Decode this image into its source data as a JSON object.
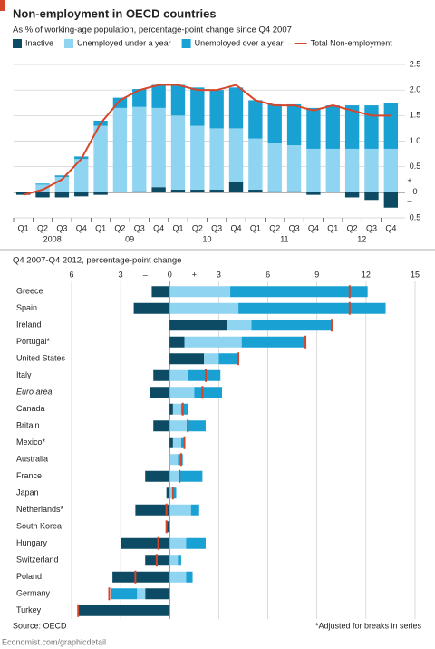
{
  "title": "Non-employment in OECD countries",
  "source": "Source: OECD",
  "note": "*Adjusted for breaks in series",
  "footer": "Economist.com/graphicdetail",
  "chart_data": [
    {
      "type": "stacked-bar-line",
      "subtitle": "As % of working-age population, percentage-point change since Q4 2007",
      "categories": [
        "Q1",
        "Q2",
        "Q3",
        "Q4",
        "Q1",
        "Q2",
        "Q3",
        "Q4",
        "Q1",
        "Q2",
        "Q3",
        "Q4",
        "Q1",
        "Q2",
        "Q3",
        "Q4",
        "Q1",
        "Q2",
        "Q3",
        "Q4"
      ],
      "years": [
        "2008",
        "09",
        "10",
        "11",
        "12"
      ],
      "series": [
        {
          "name": "Inactive",
          "color": "#0d4a63",
          "values": [
            -0.05,
            -0.1,
            -0.1,
            -0.08,
            -0.05,
            0.0,
            0.02,
            0.1,
            0.05,
            0.05,
            0.05,
            0.2,
            0.05,
            0.02,
            0.02,
            -0.05,
            0.0,
            -0.1,
            -0.15,
            -0.3
          ]
        },
        {
          "name": "Unemployed under a year",
          "color": "#8fd4f0",
          "values": [
            0.0,
            0.15,
            0.3,
            0.65,
            1.3,
            1.65,
            1.65,
            1.55,
            1.45,
            1.25,
            1.2,
            1.05,
            1.0,
            0.95,
            0.9,
            0.85,
            0.85,
            0.85,
            0.85,
            0.85
          ]
        },
        {
          "name": "Unemployed over a year",
          "color": "#1aa1d4",
          "values": [
            0.0,
            0.02,
            0.03,
            0.05,
            0.1,
            0.2,
            0.35,
            0.45,
            0.6,
            0.75,
            0.75,
            0.8,
            0.75,
            0.75,
            0.8,
            0.8,
            0.85,
            0.85,
            0.85,
            0.9
          ]
        },
        {
          "name": "Total Non-employment",
          "type": "line",
          "color": "#d5462b",
          "values": [
            -0.05,
            0.05,
            0.25,
            0.65,
            1.35,
            1.8,
            2.0,
            2.1,
            2.1,
            2.0,
            2.0,
            2.1,
            1.8,
            1.7,
            1.7,
            1.6,
            1.7,
            1.6,
            1.5,
            1.5
          ]
        }
      ],
      "ylim": [
        -0.5,
        2.5
      ],
      "yticks": [
        {
          "value": -0.5,
          "label": "0.5"
        },
        0,
        {
          "value": 0.5,
          "label": "0.5"
        },
        {
          "value": 1,
          "label": "1.0"
        },
        {
          "value": 1.5,
          "label": "1.5"
        },
        {
          "value": 2,
          "label": "2.0"
        },
        {
          "value": 2.5,
          "label": "2.5"
        }
      ],
      "signs": [
        "+",
        "–"
      ],
      "grid": true
    },
    {
      "type": "stacked-hbar",
      "subtitle": "Q4 2007-Q4 2012, percentage-point change",
      "categories": [
        "Greece",
        "Spain",
        "Ireland",
        "Portugal*",
        "United States",
        "Italy",
        "Euro area",
        "Canada",
        "Britain",
        "Mexico*",
        "Australia",
        "France",
        "Japan",
        "Netherlands*",
        "South Korea",
        "Hungary",
        "Switzerland",
        "Poland",
        "Germany",
        "Turkey"
      ],
      "italic_index": 6,
      "series": [
        {
          "color": "#0d4a63",
          "values": [
            -1.1,
            -2.2,
            3.5,
            0.9,
            2.1,
            -1.0,
            -1.2,
            0.2,
            -1.0,
            0.2,
            0.0,
            -1.5,
            -0.2,
            -2.1,
            -0.2,
            -3.0,
            -1.5,
            -3.5,
            -1.5,
            -5.6
          ]
        },
        {
          "color": "#8fd4f0",
          "values": [
            3.7,
            4.2,
            1.5,
            3.5,
            0.9,
            1.1,
            1.5,
            0.5,
            1.1,
            0.5,
            0.5,
            0.6,
            0.2,
            1.3,
            0.0,
            1.0,
            0.5,
            1.0,
            -0.5,
            0.0
          ]
        },
        {
          "color": "#1aa1d4",
          "values": [
            8.4,
            9.0,
            4.9,
            3.9,
            1.2,
            2.0,
            1.7,
            0.4,
            1.1,
            0.2,
            0.3,
            1.4,
            0.2,
            0.5,
            0.0,
            1.2,
            0.2,
            0.4,
            -1.6,
            0.0
          ]
        },
        {
          "type": "marker",
          "color": "#d5462b",
          "values": [
            11.0,
            11.0,
            9.9,
            8.3,
            4.2,
            2.2,
            2.0,
            0.8,
            1.1,
            0.9,
            0.7,
            0.6,
            0.2,
            -0.2,
            -0.2,
            -0.7,
            -0.8,
            -2.1,
            -3.7,
            -5.6
          ]
        }
      ],
      "xlim": [
        -6,
        15
      ],
      "xticks": [
        {
          "value": -6,
          "label": "6"
        },
        {
          "value": -3,
          "label": "3"
        },
        0,
        3,
        6,
        9,
        12,
        15
      ],
      "signs": [
        "–",
        "+"
      ],
      "grid": true
    }
  ]
}
